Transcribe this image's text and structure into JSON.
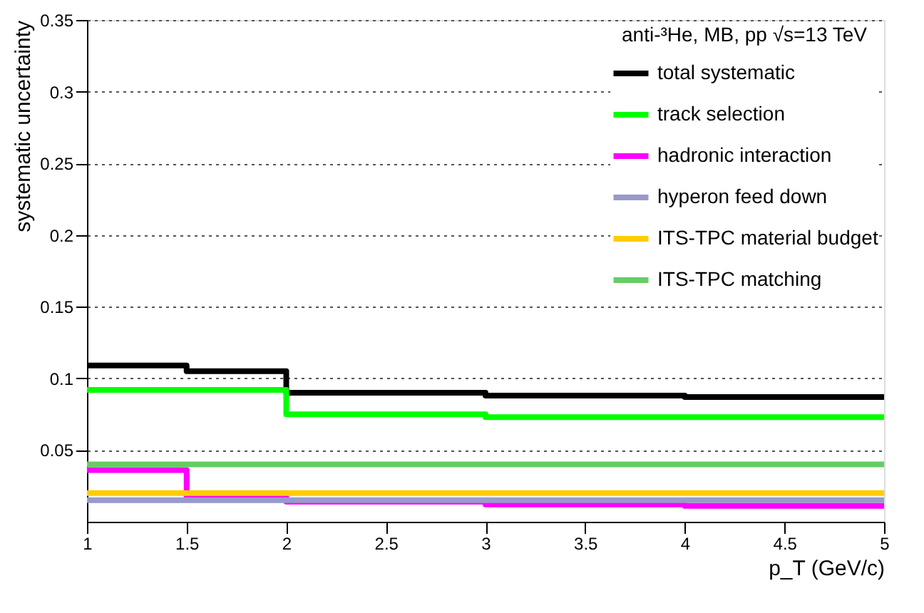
{
  "chart_data": {
    "type": "step",
    "legend_title": "anti-³He, MB, pp √s=13 TeV",
    "xlabel": "p_T (GeV/c)",
    "ylabel": "systematic uncertainty",
    "x": [
      1,
      1.5,
      2,
      3,
      4,
      5
    ],
    "series": [
      {
        "name": "total systematic",
        "color": "#000000",
        "values": [
          0.109,
          0.105,
          0.09,
          0.088,
          0.087,
          0.087
        ]
      },
      {
        "name": "track selection",
        "color": "#00ff00",
        "values": [
          0.092,
          0.092,
          0.075,
          0.073,
          0.073,
          0.073
        ]
      },
      {
        "name": "hadronic interaction",
        "color": "#ff00ff",
        "values": [
          0.036,
          0.017,
          0.014,
          0.012,
          0.011,
          0.011
        ]
      },
      {
        "name": "hyperon feed down",
        "color": "#9999cc",
        "values": [
          0.015,
          0.015,
          0.015,
          0.015,
          0.015,
          0.015
        ]
      },
      {
        "name": "ITS-TPC material budget",
        "color": "#ffcc00",
        "values": [
          0.02,
          0.02,
          0.02,
          0.02,
          0.02,
          0.02
        ]
      },
      {
        "name": "ITS-TPC matching",
        "color": "#66cc66",
        "values": [
          0.04,
          0.04,
          0.04,
          0.04,
          0.04,
          0.04
        ]
      }
    ],
    "xlim": [
      1,
      5
    ],
    "ylim": [
      0,
      0.35
    ],
    "xticks": [
      1,
      1.5,
      2,
      2.5,
      3,
      3.5,
      4,
      4.5,
      5
    ],
    "yticks": [
      0.05,
      0.1,
      0.15,
      0.2,
      0.25,
      0.3,
      0.35
    ],
    "grid": "y",
    "legend": "top right",
    "line_style": "solid"
  }
}
